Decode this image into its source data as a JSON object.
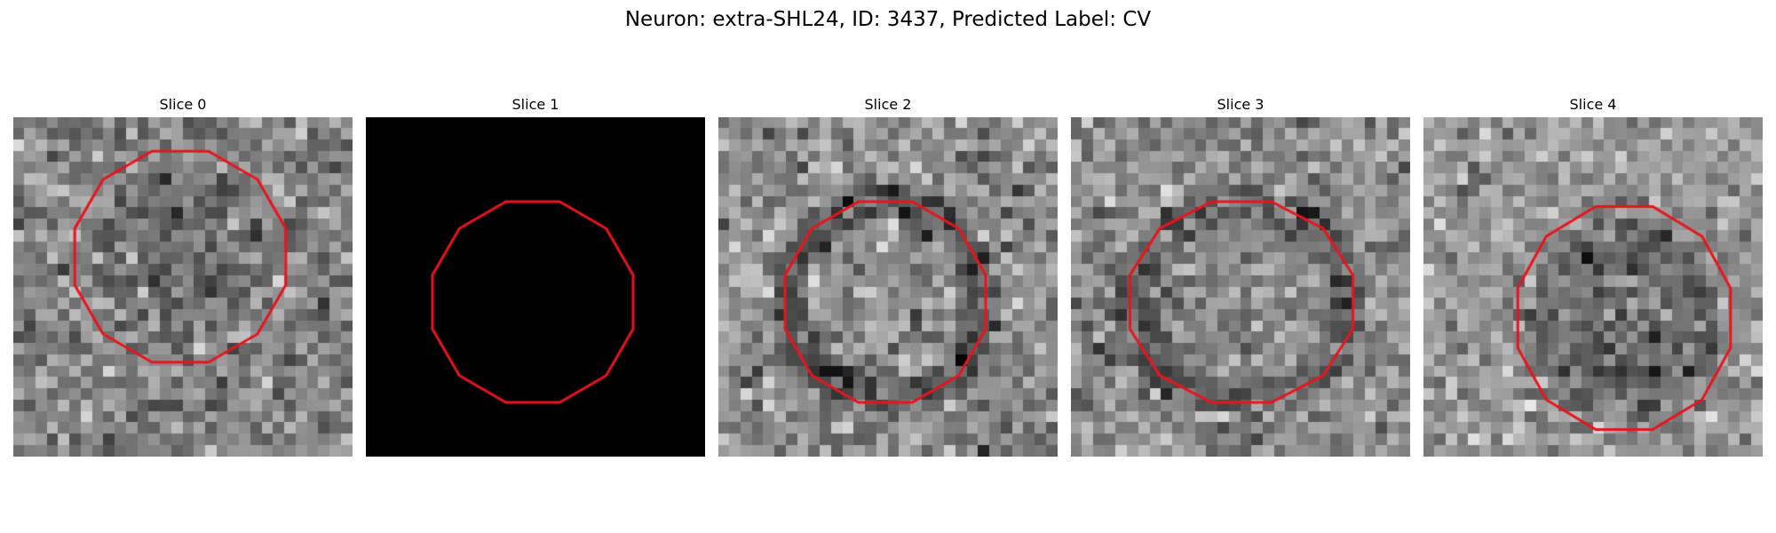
{
  "figure": {
    "title": "Neuron: extra-SHL24, ID: 3437, Predicted Label: CV"
  },
  "panels": [
    {
      "title": "Slice 0",
      "type": "noise",
      "seed": 11,
      "base": 0.52,
      "contrast": 0.2,
      "interior_delta": -0.07,
      "rim_delta": 0.05
    },
    {
      "title": "Slice 1",
      "type": "black"
    },
    {
      "title": "Slice 2",
      "type": "noise",
      "seed": 23,
      "base": 0.55,
      "contrast": 0.2,
      "interior_delta": 0.02,
      "rim_delta": -0.2
    },
    {
      "title": "Slice 3",
      "type": "noise",
      "seed": 37,
      "base": 0.56,
      "contrast": 0.19,
      "interior_delta": 0.0,
      "rim_delta": -0.17
    },
    {
      "title": "Slice 4",
      "type": "noise",
      "seed": 53,
      "base": 0.6,
      "contrast": 0.18,
      "interior_delta": -0.18,
      "rim_delta": -0.05
    }
  ],
  "overlay": {
    "color": "#e8141e",
    "shape": "dodecagon"
  }
}
